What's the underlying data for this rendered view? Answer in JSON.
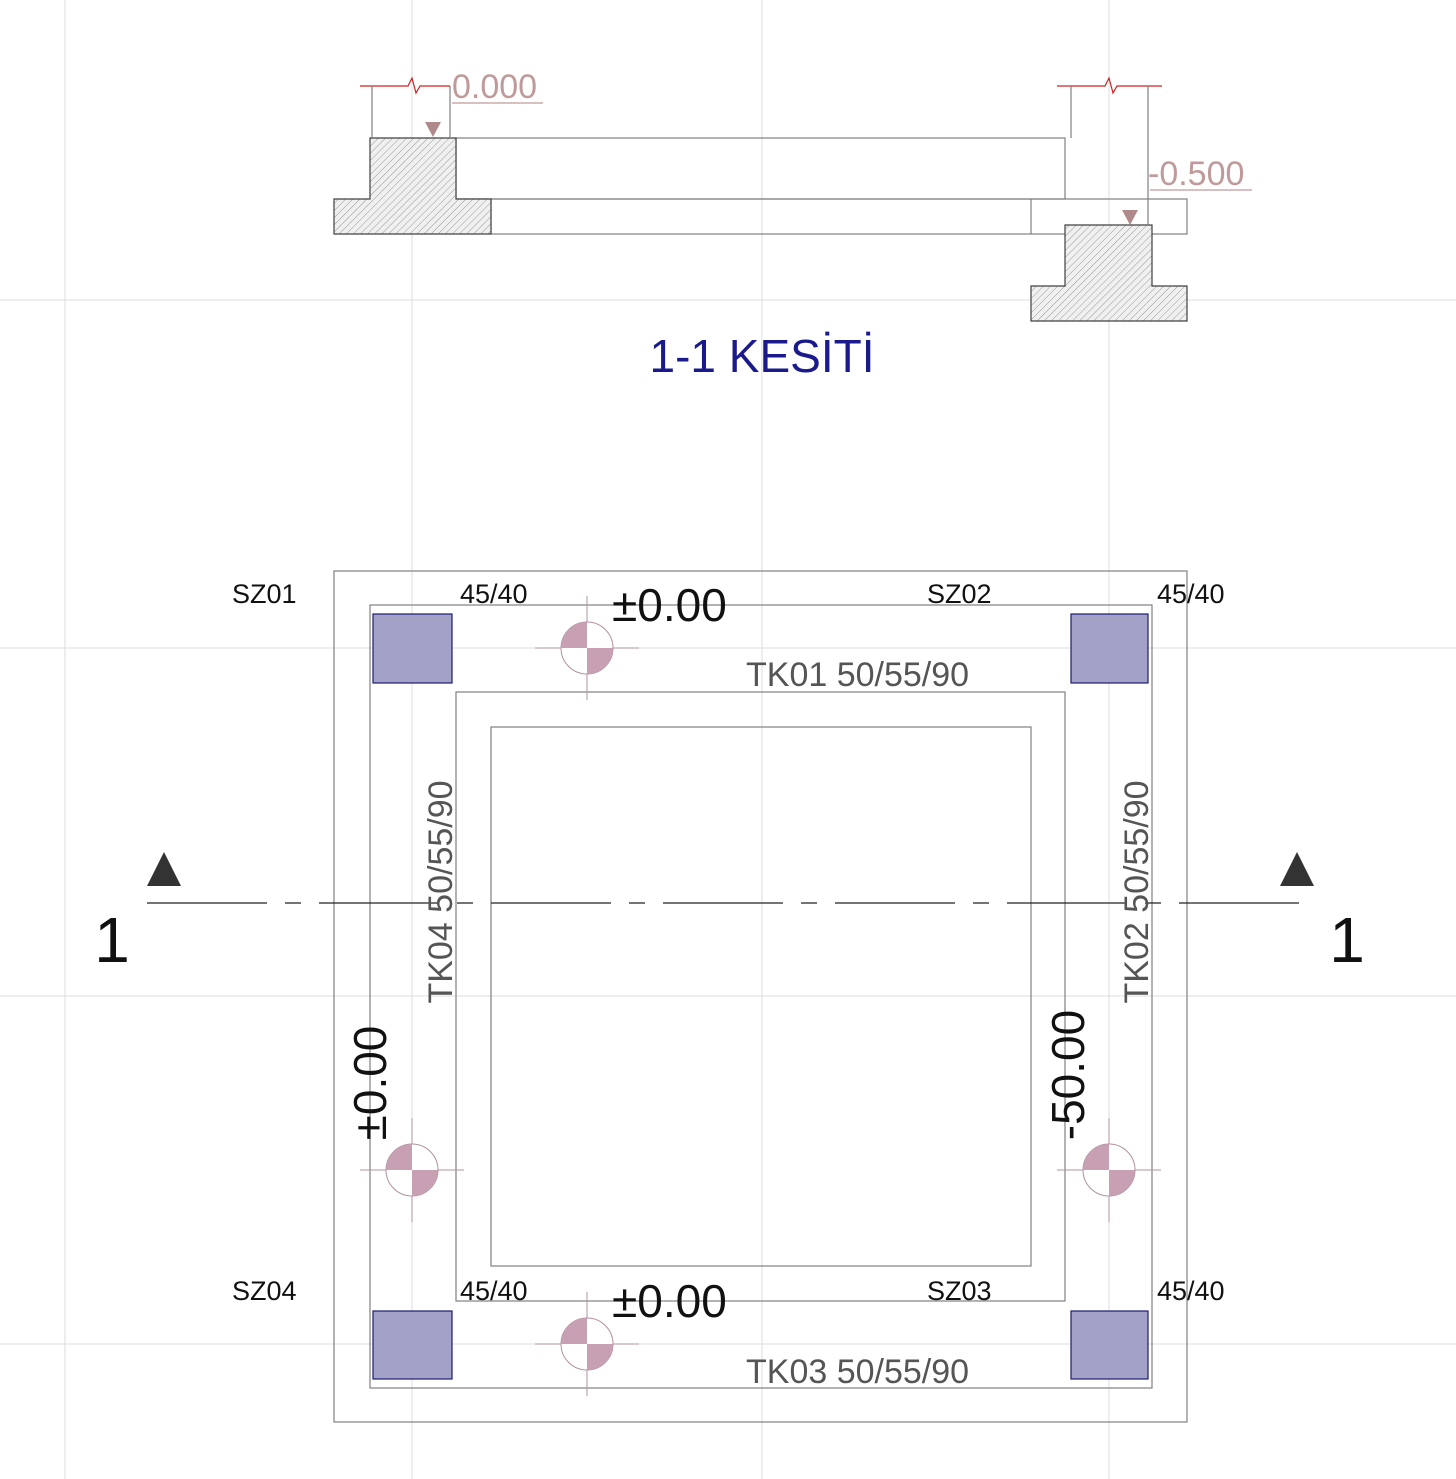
{
  "section": {
    "title": "1-1 KESİTİ",
    "levels": [
      "0.000",
      "-0.500"
    ]
  },
  "plan": {
    "columns": [
      {
        "name": "SZ01",
        "size": "45/40"
      },
      {
        "name": "SZ02",
        "size": "45/40"
      },
      {
        "name": "SZ03",
        "size": "45/40"
      },
      {
        "name": "SZ04",
        "size": "45/40"
      }
    ],
    "beams": [
      "TK01 50/55/90",
      "TK02 50/55/90",
      "TK03 50/55/90",
      "TK04 50/55/90"
    ],
    "elevations": [
      "±0.00",
      "-50.00",
      "±0.00",
      "±0.00"
    ],
    "section_marks": [
      "1",
      "1"
    ]
  }
}
